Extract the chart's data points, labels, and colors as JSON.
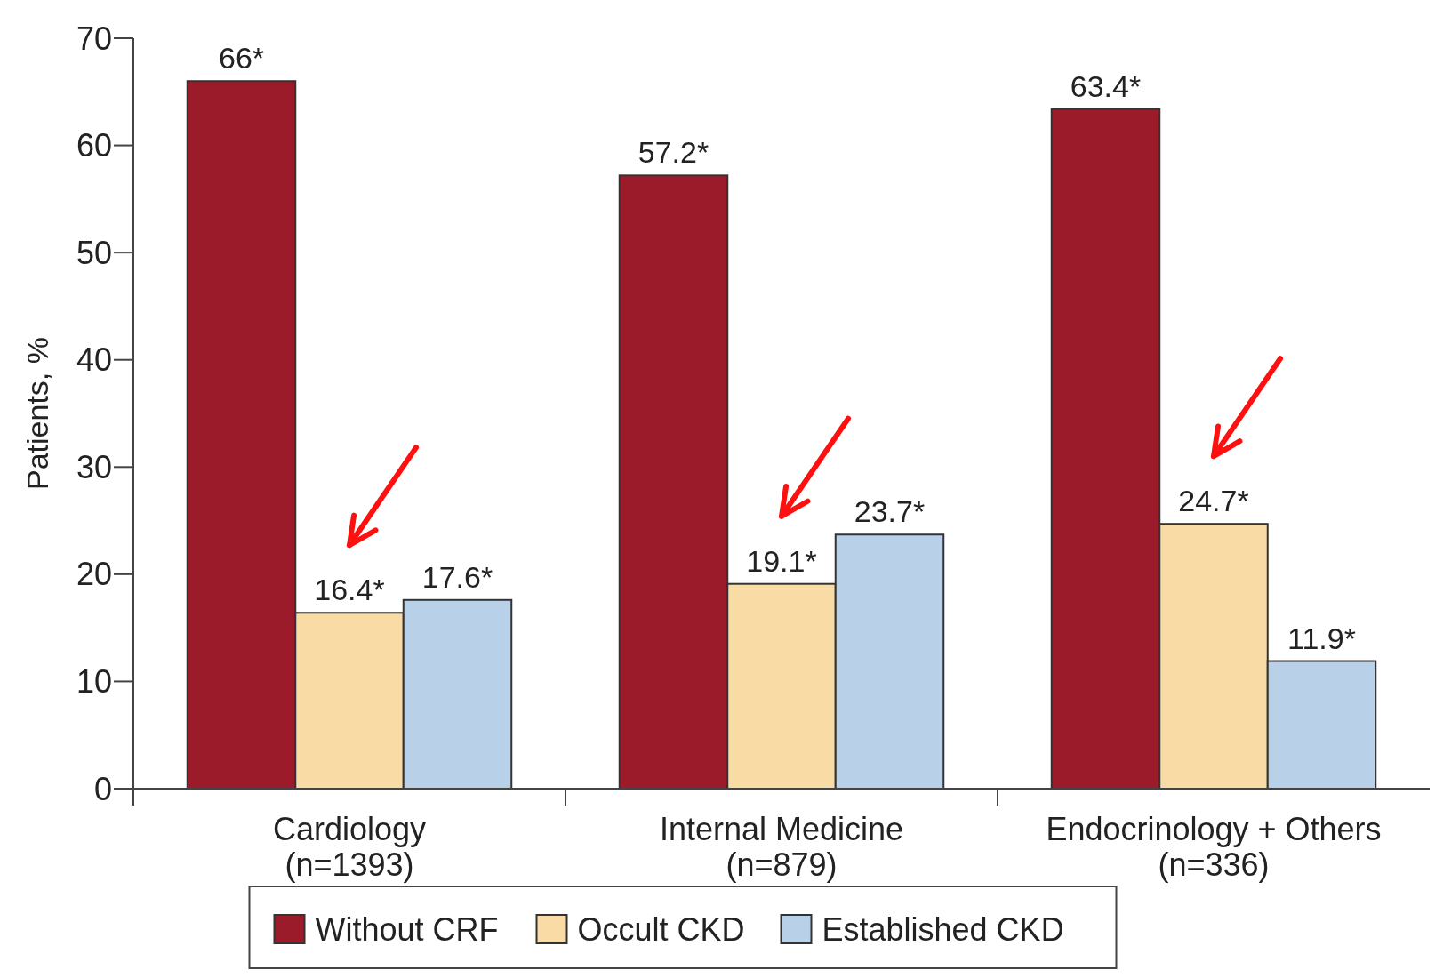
{
  "chart_data": {
    "type": "bar",
    "ylabel": "Patients, %",
    "categories": [
      "Cardiology\n(n=1393)",
      "Internal Medicine\n(n=879)",
      "Endocrinology + Others\n(n=336)"
    ],
    "series": [
      {
        "name": "Without CRF",
        "color": "#9b1b2a",
        "values": [
          66,
          57.2,
          63.4
        ],
        "value_labels": [
          "66*",
          "57.2*",
          "63.4*"
        ]
      },
      {
        "name": "Occult CKD",
        "color": "#f9dba6",
        "values": [
          16.4,
          19.1,
          24.7
        ],
        "value_labels": [
          "16.4*",
          "19.1*",
          "24.7*"
        ]
      },
      {
        "name": "Established CKD",
        "color": "#b8d0e8",
        "values": [
          17.6,
          23.7,
          11.9
        ],
        "value_labels": [
          "17.6*",
          "23.7*",
          "11.9*"
        ]
      }
    ],
    "ylim": [
      0,
      70
    ],
    "yticks": [
      0,
      10,
      20,
      30,
      40,
      50,
      60,
      70
    ],
    "grid": false,
    "legend": "bottom"
  }
}
